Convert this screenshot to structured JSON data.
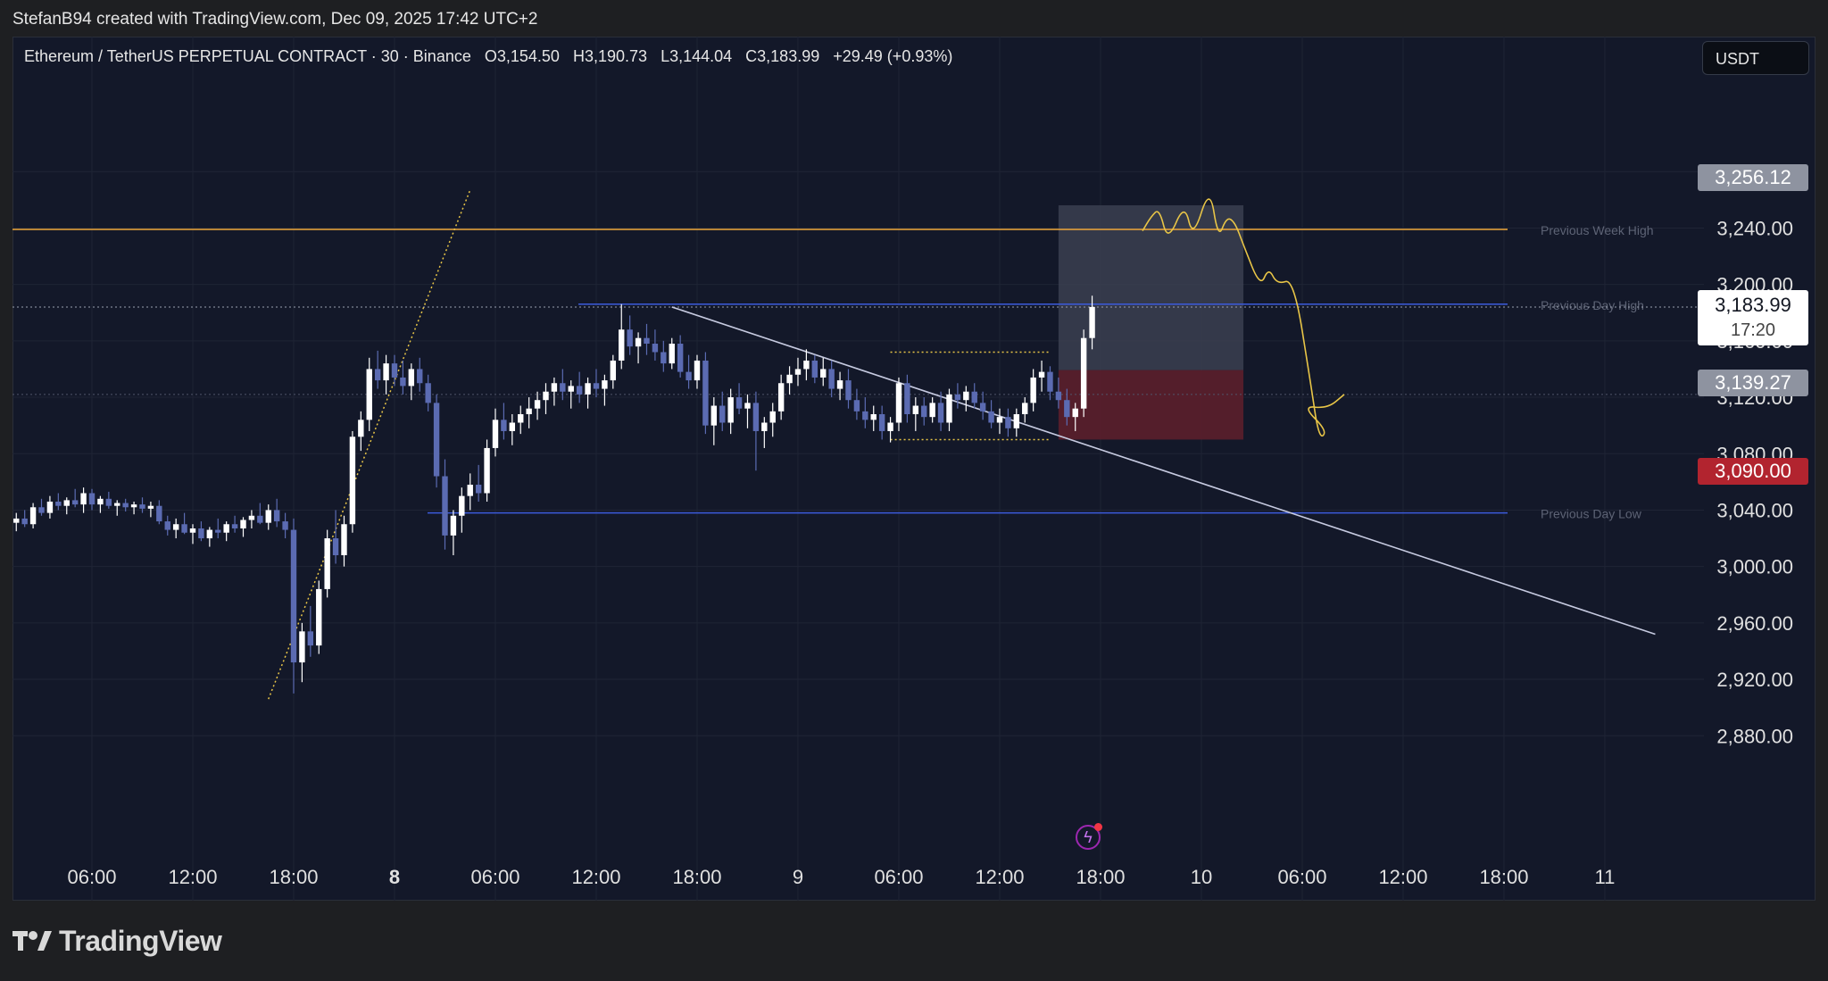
{
  "header": {
    "text": "StefanB94 created with TradingView.com, Dec 09, 2025 17:42 UTC+2"
  },
  "legend": {
    "symbol": "Ethereum / TetherUS PERPETUAL CONTRACT · 30 · Binance",
    "open": "O3,154.50",
    "high": "H3,190.73",
    "low": "L3,144.04",
    "close": "C3,183.99",
    "change": "+29.49 (+0.93%)"
  },
  "currency_button": "USDT",
  "brand": {
    "name": "TradingView",
    "logo_icon": "tradingview-logo-icon"
  },
  "price_tags": {
    "target": "3,256.12",
    "current": "3,183.99",
    "countdown": "17:20",
    "entry": "3,139.27",
    "stop": "3,090.00"
  },
  "chart_data": {
    "type": "candlestick",
    "symbol": "ETHUSDT.P",
    "interval_minutes": 30,
    "ylim": [
      2870,
      3310
    ],
    "y_ticks": [
      3280,
      3240,
      3200,
      3160,
      3120,
      3080,
      3040,
      3000,
      2960,
      2920,
      2880
    ],
    "y_tick_labels": [
      "3,280.00",
      "3,240.00",
      "3,200.00",
      "3,160.00",
      "3,120.00",
      "3,080.00",
      "3,040.00",
      "3,000.00",
      "2,960.00",
      "2,920.00",
      "2,880.00"
    ],
    "x_ticks": [
      {
        "label": "06:00",
        "t": "2025-12-07 06:00",
        "bold": false
      },
      {
        "label": "12:00",
        "t": "2025-12-07 12:00",
        "bold": false
      },
      {
        "label": "18:00",
        "t": "2025-12-07 18:00",
        "bold": false
      },
      {
        "label": "8",
        "t": "2025-12-08 00:00",
        "bold": true
      },
      {
        "label": "06:00",
        "t": "2025-12-08 06:00",
        "bold": false
      },
      {
        "label": "12:00",
        "t": "2025-12-08 12:00",
        "bold": false
      },
      {
        "label": "18:00",
        "t": "2025-12-08 18:00",
        "bold": false
      },
      {
        "label": "9",
        "t": "2025-12-09 00:00",
        "bold": false
      },
      {
        "label": "06:00",
        "t": "2025-12-09 06:00",
        "bold": false
      },
      {
        "label": "12:00",
        "t": "2025-12-09 12:00",
        "bold": false
      },
      {
        "label": "18:00",
        "t": "2025-12-09 18:00",
        "bold": false
      },
      {
        "label": "10",
        "t": "2025-12-10 00:00",
        "bold": false
      },
      {
        "label": "06:00",
        "t": "2025-12-10 06:00",
        "bold": false
      },
      {
        "label": "12:00",
        "t": "2025-12-10 12:00",
        "bold": false
      },
      {
        "label": "18:00",
        "t": "2025-12-10 18:00",
        "bold": false
      },
      {
        "label": "11",
        "t": "2025-12-11 00:00",
        "bold": false
      }
    ],
    "candles_ohlc": [
      [
        3031,
        3038,
        3025,
        3034
      ],
      [
        3034,
        3040,
        3028,
        3030
      ],
      [
        3030,
        3045,
        3027,
        3042
      ],
      [
        3042,
        3048,
        3036,
        3038
      ],
      [
        3038,
        3050,
        3034,
        3046
      ],
      [
        3046,
        3052,
        3040,
        3043
      ],
      [
        3043,
        3049,
        3037,
        3047
      ],
      [
        3047,
        3055,
        3042,
        3044
      ],
      [
        3044,
        3056,
        3038,
        3052
      ],
      [
        3052,
        3055,
        3040,
        3044
      ],
      [
        3044,
        3050,
        3038,
        3048
      ],
      [
        3048,
        3053,
        3041,
        3043
      ],
      [
        3043,
        3047,
        3036,
        3045
      ],
      [
        3045,
        3048,
        3039,
        3042
      ],
      [
        3042,
        3046,
        3037,
        3044
      ],
      [
        3044,
        3049,
        3038,
        3041
      ],
      [
        3041,
        3046,
        3035,
        3043
      ],
      [
        3043,
        3047,
        3030,
        3032
      ],
      [
        3032,
        3036,
        3022,
        3026
      ],
      [
        3026,
        3034,
        3020,
        3030
      ],
      [
        3030,
        3038,
        3023,
        3024
      ],
      [
        3024,
        3030,
        3016,
        3027
      ],
      [
        3027,
        3032,
        3018,
        3020
      ],
      [
        3020,
        3028,
        3014,
        3026
      ],
      [
        3026,
        3034,
        3020,
        3024
      ],
      [
        3024,
        3032,
        3018,
        3030
      ],
      [
        3030,
        3036,
        3024,
        3027
      ],
      [
        3027,
        3035,
        3021,
        3033
      ],
      [
        3033,
        3040,
        3027,
        3036
      ],
      [
        3036,
        3045,
        3030,
        3031
      ],
      [
        3031,
        3044,
        3026,
        3040
      ],
      [
        3040,
        3048,
        3028,
        3032
      ],
      [
        3032,
        3038,
        3020,
        3026
      ],
      [
        3026,
        3034,
        2910,
        2932
      ],
      [
        2932,
        2960,
        2918,
        2954
      ],
      [
        2954,
        2972,
        2936,
        2944
      ],
      [
        2944,
        2990,
        2938,
        2984
      ],
      [
        2984,
        3026,
        2978,
        3020
      ],
      [
        3020,
        3040,
        3002,
        3008
      ],
      [
        3008,
        3036,
        3000,
        3030
      ],
      [
        3030,
        3096,
        3024,
        3092
      ],
      [
        3092,
        3110,
        3082,
        3104
      ],
      [
        3104,
        3148,
        3096,
        3140
      ],
      [
        3140,
        3153,
        3126,
        3132
      ],
      [
        3132,
        3150,
        3122,
        3144
      ],
      [
        3144,
        3150,
        3128,
        3134
      ],
      [
        3134,
        3146,
        3122,
        3128
      ],
      [
        3128,
        3144,
        3118,
        3140
      ],
      [
        3140,
        3148,
        3124,
        3130
      ],
      [
        3130,
        3136,
        3110,
        3116
      ],
      [
        3116,
        3122,
        3056,
        3064
      ],
      [
        3064,
        3076,
        3012,
        3022
      ],
      [
        3022,
        3040,
        3008,
        3036
      ],
      [
        3036,
        3056,
        3024,
        3050
      ],
      [
        3050,
        3066,
        3040,
        3058
      ],
      [
        3058,
        3072,
        3046,
        3052
      ],
      [
        3052,
        3090,
        3046,
        3084
      ],
      [
        3084,
        3112,
        3078,
        3104
      ],
      [
        3104,
        3116,
        3090,
        3096
      ],
      [
        3096,
        3108,
        3086,
        3102
      ],
      [
        3102,
        3114,
        3094,
        3108
      ],
      [
        3108,
        3120,
        3098,
        3112
      ],
      [
        3112,
        3124,
        3104,
        3118
      ],
      [
        3118,
        3130,
        3108,
        3124
      ],
      [
        3124,
        3134,
        3114,
        3130
      ],
      [
        3130,
        3140,
        3118,
        3124
      ],
      [
        3124,
        3132,
        3112,
        3128
      ],
      [
        3128,
        3138,
        3116,
        3122
      ],
      [
        3122,
        3134,
        3112,
        3130
      ],
      [
        3130,
        3140,
        3120,
        3126
      ],
      [
        3126,
        3136,
        3114,
        3132
      ],
      [
        3132,
        3150,
        3126,
        3146
      ],
      [
        3146,
        3186,
        3140,
        3168
      ],
      [
        3168,
        3178,
        3150,
        3156
      ],
      [
        3156,
        3166,
        3144,
        3162
      ],
      [
        3162,
        3172,
        3150,
        3158
      ],
      [
        3158,
        3168,
        3146,
        3152
      ],
      [
        3152,
        3160,
        3138,
        3144
      ],
      [
        3144,
        3162,
        3140,
        3158
      ],
      [
        3158,
        3164,
        3134,
        3138
      ],
      [
        3138,
        3150,
        3126,
        3132
      ],
      [
        3132,
        3150,
        3126,
        3146
      ],
      [
        3146,
        3152,
        3094,
        3100
      ],
      [
        3100,
        3120,
        3086,
        3114
      ],
      [
        3114,
        3124,
        3096,
        3102
      ],
      [
        3102,
        3126,
        3094,
        3120
      ],
      [
        3120,
        3130,
        3108,
        3112
      ],
      [
        3112,
        3122,
        3098,
        3116
      ],
      [
        3116,
        3124,
        3068,
        3096
      ],
      [
        3096,
        3106,
        3084,
        3102
      ],
      [
        3102,
        3116,
        3092,
        3110
      ],
      [
        3110,
        3136,
        3104,
        3130
      ],
      [
        3130,
        3142,
        3122,
        3136
      ],
      [
        3136,
        3148,
        3128,
        3140
      ],
      [
        3140,
        3154,
        3132,
        3146
      ],
      [
        3146,
        3150,
        3130,
        3134
      ],
      [
        3134,
        3148,
        3128,
        3140
      ],
      [
        3140,
        3146,
        3120,
        3126
      ],
      [
        3126,
        3138,
        3118,
        3132
      ],
      [
        3132,
        3140,
        3112,
        3118
      ],
      [
        3118,
        3126,
        3104,
        3110
      ],
      [
        3110,
        3120,
        3098,
        3104
      ],
      [
        3104,
        3114,
        3096,
        3108
      ],
      [
        3108,
        3114,
        3090,
        3096
      ],
      [
        3096,
        3106,
        3088,
        3102
      ],
      [
        3102,
        3134,
        3096,
        3130
      ],
      [
        3130,
        3136,
        3102,
        3108
      ],
      [
        3108,
        3120,
        3096,
        3114
      ],
      [
        3114,
        3120,
        3100,
        3106
      ],
      [
        3106,
        3120,
        3102,
        3116
      ],
      [
        3116,
        3124,
        3096,
        3102
      ],
      [
        3102,
        3126,
        3096,
        3122
      ],
      [
        3122,
        3130,
        3112,
        3118
      ],
      [
        3118,
        3128,
        3110,
        3124
      ],
      [
        3124,
        3130,
        3112,
        3116
      ],
      [
        3116,
        3124,
        3104,
        3110
      ],
      [
        3110,
        3118,
        3098,
        3102
      ],
      [
        3102,
        3112,
        3094,
        3106
      ],
      [
        3106,
        3112,
        3092,
        3098
      ],
      [
        3098,
        3112,
        3092,
        3108
      ],
      [
        3108,
        3120,
        3102,
        3116
      ],
      [
        3116,
        3140,
        3110,
        3134
      ],
      [
        3134,
        3146,
        3124,
        3138
      ],
      [
        3138,
        3142,
        3118,
        3124
      ],
      [
        3124,
        3134,
        3112,
        3118
      ],
      [
        3118,
        3126,
        3100,
        3106
      ],
      [
        3106,
        3116,
        3096,
        3112
      ],
      [
        3112,
        3168,
        3106,
        3162
      ],
      [
        3162,
        3192,
        3154,
        3184
      ]
    ],
    "levels": [
      {
        "label": "Previous Week High",
        "price": 3239
      },
      {
        "label": "Previous Day High",
        "price": 3186
      },
      {
        "label": "Previous Day Low",
        "price": 3038
      }
    ],
    "current_price": 3183.99,
    "prev_close_line": 3122,
    "position": {
      "side": "long",
      "target": 3256.12,
      "entry": 3139.27,
      "stop": 3090.0,
      "start": "2025-12-09 15:30",
      "end": "2025-12-10 02:30"
    },
    "trendline": {
      "start": [
        "2025-12-08 16:30",
        3184
      ],
      "end": [
        "2025-12-11 03:00",
        2952
      ]
    },
    "dotted_trend": {
      "start": [
        "2025-12-07 16:30",
        2906
      ],
      "end": [
        "2025-12-08 04:30",
        3267
      ]
    },
    "range_box": {
      "top": 3152,
      "bottom": 3090,
      "start": "2025-12-09 05:30",
      "end": "2025-12-09 15:00"
    },
    "projection": [
      [
        "2025-12-09 20:30",
        3238
      ],
      [
        "2025-12-09 21:00",
        3248
      ],
      [
        "2025-12-09 21:30",
        3254
      ],
      [
        "2025-12-09 22:00",
        3230
      ],
      [
        "2025-12-09 23:00",
        3258
      ],
      [
        "2025-12-09 23:30",
        3232
      ],
      [
        "2025-12-10 00:30",
        3270
      ],
      [
        "2025-12-10 01:00",
        3232
      ],
      [
        "2025-12-10 01:30",
        3248
      ],
      [
        "2025-12-10 02:00",
        3244
      ],
      [
        "2025-12-10 02:30",
        3228
      ],
      [
        "2025-12-10 03:30",
        3198
      ],
      [
        "2025-12-10 04:00",
        3212
      ],
      [
        "2025-12-10 04:30",
        3200
      ],
      [
        "2025-12-10 05:30",
        3204
      ],
      [
        "2025-12-10 06:30",
        3130
      ],
      [
        "2025-12-10 07:00",
        3090
      ],
      [
        "2025-12-10 07:30",
        3096
      ],
      [
        "2025-12-10 06:00",
        3114
      ],
      [
        "2025-12-10 07:30",
        3112
      ],
      [
        "2025-12-10 08:30",
        3122
      ]
    ],
    "colors": {
      "up": "#ffffff",
      "down": "#5b6bb2",
      "week_high": "#f0a73a",
      "day_level": "#3b5bdb",
      "trendline": "#c6cae0",
      "projection": "#e8c547",
      "target_zone": "#3b4050",
      "stop_zone": "#5c1f2b"
    },
    "grid": true
  }
}
